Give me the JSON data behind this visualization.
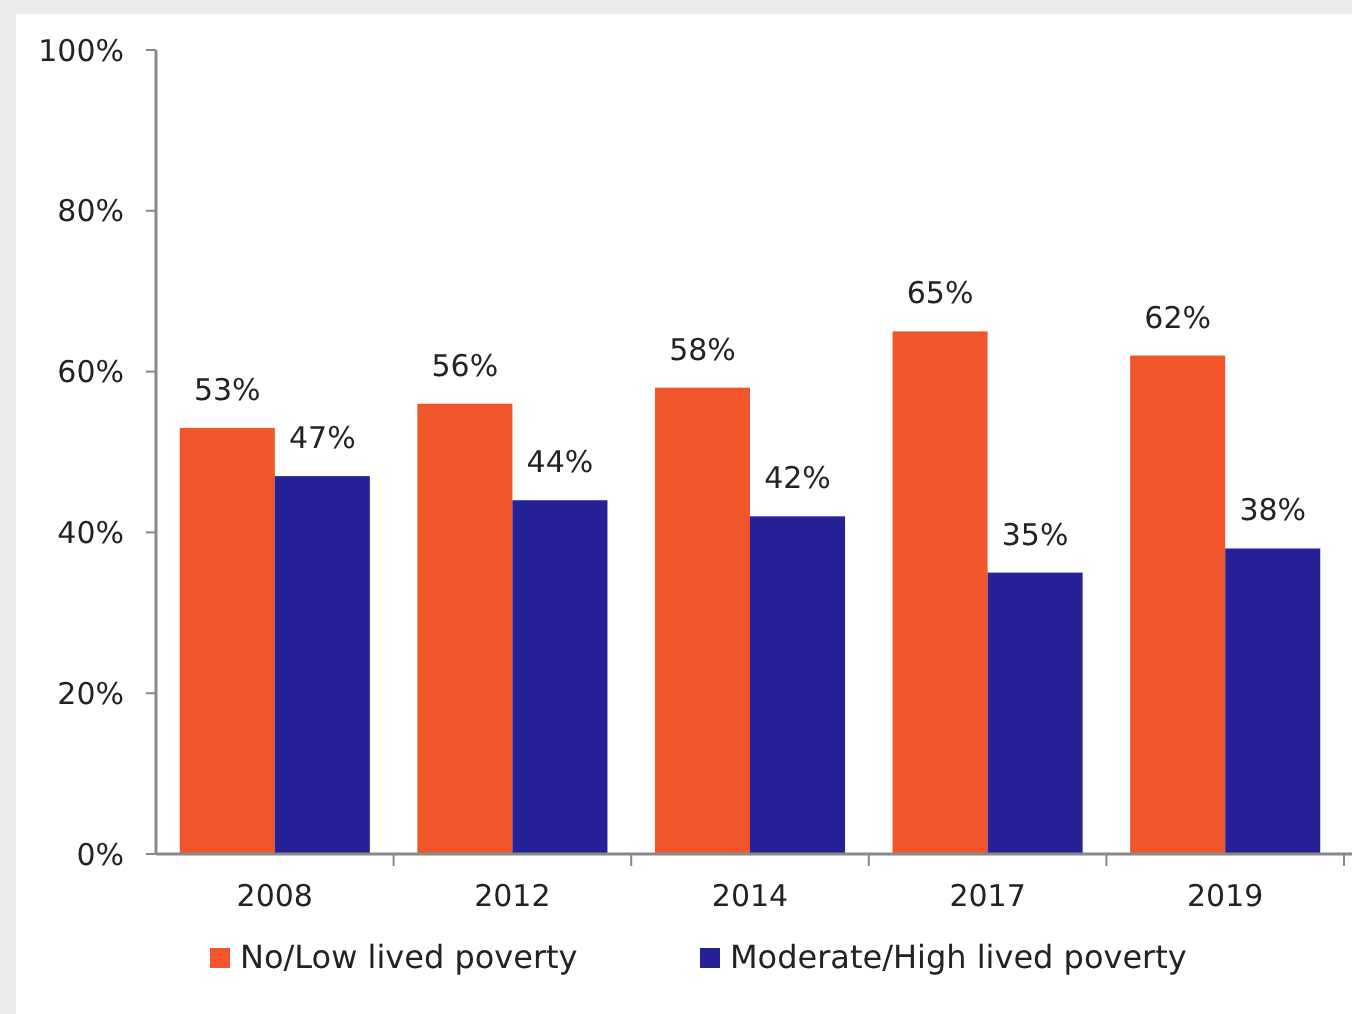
{
  "chart_data": {
    "type": "bar",
    "categories": [
      "2008",
      "2012",
      "2014",
      "2017",
      "2019"
    ],
    "series": [
      {
        "name": "No/Low lived poverty",
        "color": "#f1562a",
        "values": [
          53,
          56,
          58,
          65,
          62
        ],
        "value_labels": [
          "53%",
          "56%",
          "58%",
          "65%",
          "62%"
        ]
      },
      {
        "name": "Moderate/High lived poverty",
        "color": "#262196",
        "values": [
          47,
          44,
          42,
          35,
          38
        ],
        "value_labels": [
          "47%",
          "44%",
          "42%",
          "35%",
          "38%"
        ]
      }
    ],
    "ylim": [
      0,
      100
    ],
    "yticks": [
      {
        "value": 0,
        "label": "0%"
      },
      {
        "value": 20,
        "label": "20%"
      },
      {
        "value": 40,
        "label": "40%"
      },
      {
        "value": 60,
        "label": "60%"
      },
      {
        "value": 80,
        "label": "80%"
      },
      {
        "value": 100,
        "label": "100%"
      }
    ],
    "legend": "bottom",
    "grid": false
  }
}
